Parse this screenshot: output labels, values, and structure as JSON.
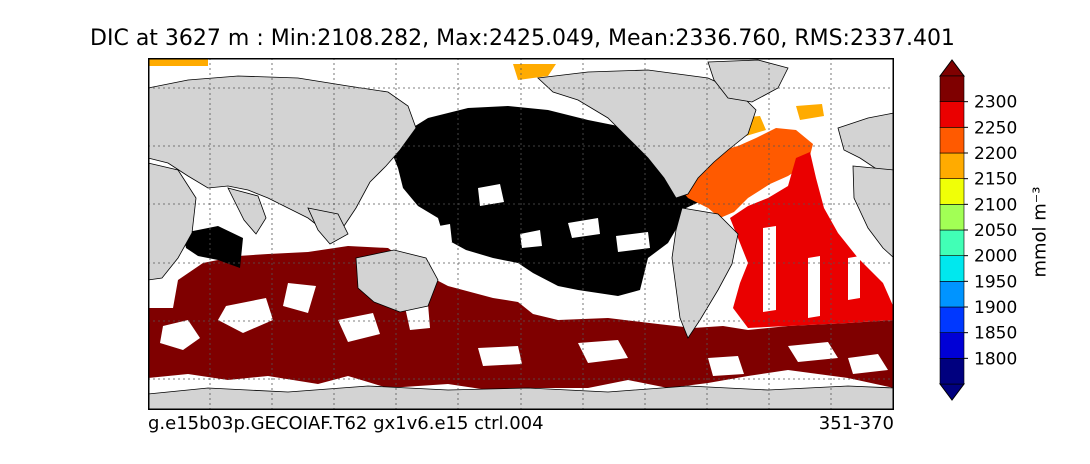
{
  "title": "DIC at 3627 m : Min:2108.282, Max:2425.049, Mean:2336.760, RMS:2337.401",
  "footer": {
    "case_name": "g.e15b03p.GECOIAF.T62 gx1v6.e15 ctrl.004",
    "years": "351-370"
  },
  "colorbar": {
    "units": "mmol m⁻³",
    "ticks": [
      "1800",
      "1850",
      "1900",
      "1950",
      "2000",
      "2050",
      "2100",
      "2150",
      "2200",
      "2250",
      "2300"
    ],
    "colors": [
      "#00007f",
      "#0000d6",
      "#0038ff",
      "#0094ff",
      "#00e8ee",
      "#41ffb6",
      "#a2ff55",
      "#f0ff07",
      "#ffab00",
      "#ff5a00",
      "#ea0000",
      "#7f0000"
    ],
    "extend": "both"
  },
  "map": {
    "land_color": "#d3d3d3",
    "missing_color": "#ffffff",
    "grid": "dotted",
    "regions": [
      {
        "name": "north-pacific",
        "level": "black"
      },
      {
        "name": "north-atlantic",
        "level": "2200-2250"
      },
      {
        "name": "south-atlantic",
        "level": "2250-2300"
      },
      {
        "name": "southern-ocean",
        "level": ">2300"
      }
    ]
  }
}
